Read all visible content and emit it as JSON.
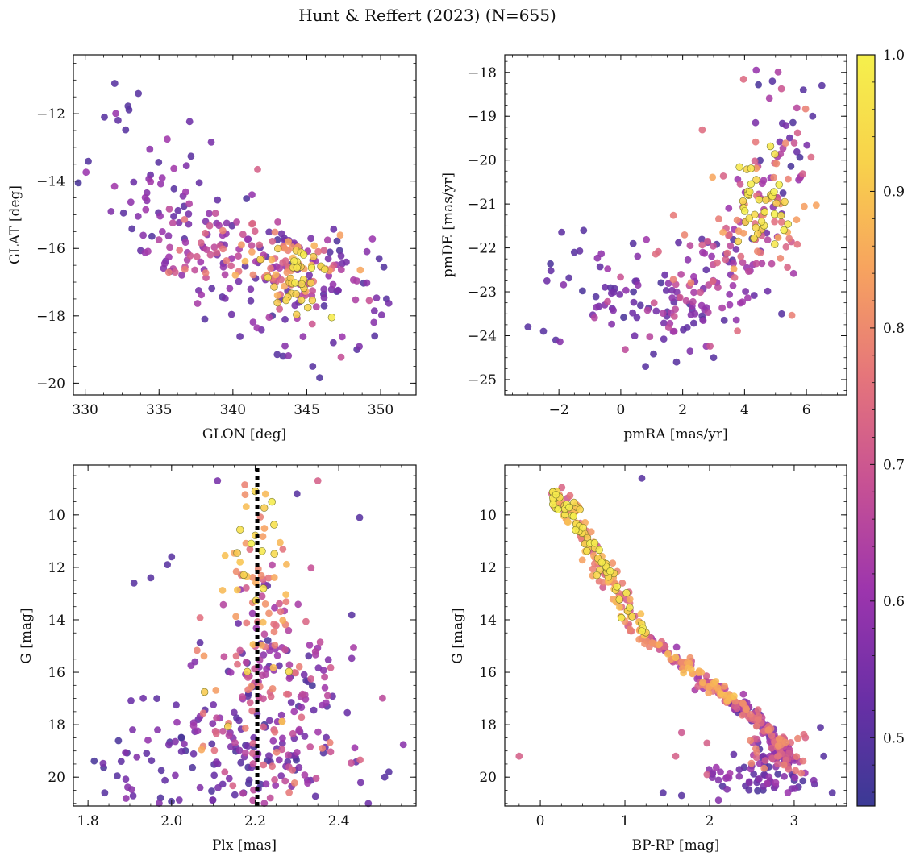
{
  "title": "Hunt & Reffert (2023) (N=655)",
  "colormap": {
    "name": "plasma",
    "vmin": 0.45,
    "vmax": 1.0,
    "ticks": [
      0.5,
      0.6,
      0.7,
      0.8,
      0.9,
      1.0
    ],
    "tick_labels": [
      "0.5",
      "0.6",
      "0.7",
      "0.8",
      "0.9",
      "1.0"
    ],
    "stops": [
      "#3b3a95",
      "#6a2fa6",
      "#9c35ad",
      "#c75194",
      "#e5757b",
      "#f7a35f",
      "#f8d24b",
      "#f5f04c"
    ]
  },
  "colors": {
    "axis": "#111111",
    "guide_line": "#000000",
    "marker_edge_bright": "#7a7a2a"
  },
  "chart_data": [
    {
      "type": "scatter",
      "panel": "top-left",
      "xlabel": "GLON [deg]",
      "ylabel": "GLAT [deg]",
      "xlim": [
        329.2,
        352.4
      ],
      "ylim": [
        -20.35,
        -10.25
      ],
      "y_inverted": false,
      "xticks": [
        330,
        335,
        340,
        345,
        350
      ],
      "xtick_labels": [
        "330",
        "335",
        "340",
        "345",
        "350"
      ],
      "yticks": [
        -20,
        -18,
        -16,
        -14,
        -12
      ],
      "ytick_labels": [
        "−20",
        "−18",
        "−16",
        "−14",
        "−12"
      ],
      "groups": [
        {
          "center": [
            335.0,
            -14.3
          ],
          "spread": [
            2.6,
            1.4
          ],
          "count": 55,
          "color_range": [
            0.47,
            0.62
          ]
        },
        {
          "center": [
            338.5,
            -15.9
          ],
          "spread": [
            2.3,
            0.8
          ],
          "count": 60,
          "color_range": [
            0.55,
            0.8
          ]
        },
        {
          "center": [
            342.5,
            -16.7
          ],
          "spread": [
            3.2,
            0.8
          ],
          "count": 80,
          "color_range": [
            0.47,
            0.65
          ]
        },
        {
          "center": [
            343.5,
            -16.5
          ],
          "spread": [
            1.8,
            0.5
          ],
          "count": 55,
          "color_range": [
            0.7,
            0.88
          ]
        },
        {
          "center": [
            344.3,
            -16.9
          ],
          "spread": [
            0.9,
            0.45
          ],
          "count": 35,
          "color_range": [
            0.9,
            1.0
          ]
        },
        {
          "center": [
            345.5,
            -17.6
          ],
          "spread": [
            2.6,
            0.9
          ],
          "count": 45,
          "color_range": [
            0.47,
            0.7
          ]
        }
      ],
      "points": [
        {
          "x": 332.0,
          "y": -11.1,
          "c": 0.5
        },
        {
          "x": 333.6,
          "y": -11.4,
          "c": 0.5
        },
        {
          "x": 331.3,
          "y": -12.1,
          "c": 0.5
        },
        {
          "x": 343.0,
          "y": -19.15,
          "c": 0.5
        },
        {
          "x": 343.4,
          "y": -19.2,
          "c": 0.5
        },
        {
          "x": 345.4,
          "y": -19.5,
          "c": 0.5
        },
        {
          "x": 348.4,
          "y": -19.0,
          "c": 0.5
        },
        {
          "x": 350.4,
          "y": -17.5,
          "c": 0.5
        },
        {
          "x": 349.6,
          "y": -18.6,
          "c": 0.5
        },
        {
          "x": 349.9,
          "y": -16.3,
          "c": 0.5
        },
        {
          "x": 346.8,
          "y": -18.8,
          "c": 0.52
        },
        {
          "x": 338.1,
          "y": -18.1,
          "c": 0.5
        }
      ]
    },
    {
      "type": "scatter",
      "panel": "top-right",
      "xlabel": "pmRA [mas/yr]",
      "ylabel": "pmDE [mas/yr]",
      "xlim": [
        -3.75,
        7.3
      ],
      "ylim": [
        -25.35,
        -17.6
      ],
      "y_inverted": false,
      "xticks": [
        -2,
        0,
        2,
        4,
        6
      ],
      "xtick_labels": [
        "−2",
        "0",
        "2",
        "4",
        "6"
      ],
      "yticks": [
        -25,
        -24,
        -23,
        -22,
        -21,
        -20,
        -19,
        -18
      ],
      "ytick_labels": [
        "−25",
        "−24",
        "−23",
        "−22",
        "−21",
        "−20",
        "−19",
        "−18"
      ],
      "groups": [
        {
          "center": [
            -0.5,
            -23.1
          ],
          "spread": [
            1.1,
            0.55
          ],
          "count": 40,
          "color_range": [
            0.47,
            0.6
          ]
        },
        {
          "center": [
            1.5,
            -23.4
          ],
          "spread": [
            0.9,
            0.45
          ],
          "count": 55,
          "color_range": [
            0.47,
            0.7
          ]
        },
        {
          "center": [
            3.2,
            -22.4
          ],
          "spread": [
            1.0,
            0.6
          ],
          "count": 65,
          "color_range": [
            0.5,
            0.8
          ]
        },
        {
          "center": [
            4.3,
            -21.4
          ],
          "spread": [
            0.8,
            0.7
          ],
          "count": 60,
          "color_range": [
            0.6,
            0.88
          ]
        },
        {
          "center": [
            4.6,
            -20.9
          ],
          "spread": [
            0.45,
            0.5
          ],
          "count": 38,
          "color_range": [
            0.9,
            1.0
          ]
        },
        {
          "center": [
            5.2,
            -19.6
          ],
          "spread": [
            0.8,
            0.9
          ],
          "count": 45,
          "color_range": [
            0.47,
            0.8
          ]
        }
      ],
      "points": [
        {
          "x": -3.0,
          "y": -23.8,
          "c": 0.5
        },
        {
          "x": -2.5,
          "y": -23.9,
          "c": 0.5
        },
        {
          "x": -2.1,
          "y": -24.1,
          "c": 0.5
        },
        {
          "x": -1.5,
          "y": -22.1,
          "c": 0.5
        },
        {
          "x": -1.2,
          "y": -21.6,
          "c": 0.5
        },
        {
          "x": 0.8,
          "y": -24.7,
          "c": 0.5
        },
        {
          "x": 1.8,
          "y": -24.6,
          "c": 0.5
        },
        {
          "x": 3.0,
          "y": -24.5,
          "c": 0.5
        },
        {
          "x": 4.9,
          "y": -18.2,
          "c": 0.5
        },
        {
          "x": 6.5,
          "y": -18.3,
          "c": 0.5
        },
        {
          "x": 5.9,
          "y": -18.4,
          "c": 0.5
        },
        {
          "x": 6.2,
          "y": -19.0,
          "c": 0.5
        },
        {
          "x": 5.2,
          "y": -23.5,
          "c": 0.5
        },
        {
          "x": 0.4,
          "y": -21.9,
          "c": 0.5
        }
      ]
    },
    {
      "type": "scatter",
      "panel": "bottom-left",
      "xlabel": "Plx [mas]",
      "ylabel": "G [mag]",
      "xlim": [
        1.765,
        2.585
      ],
      "ylim": [
        21.1,
        8.1
      ],
      "y_inverted": true,
      "vline": {
        "x": 2.205,
        "style": "dotted",
        "label": ""
      },
      "xticks": [
        1.8,
        2.0,
        2.2,
        2.4
      ],
      "xtick_labels": [
        "1.8",
        "2.0",
        "2.2",
        "2.4"
      ],
      "yticks": [
        10,
        12,
        14,
        16,
        18,
        20
      ],
      "ytick_labels": [
        "10",
        "12",
        "14",
        "16",
        "18",
        "20"
      ],
      "groups": [
        {
          "center": [
            2.22,
            11.5
          ],
          "spread": [
            0.04,
            1.4
          ],
          "count": 35,
          "color_range": [
            0.75,
            1.0
          ]
        },
        {
          "center": [
            2.22,
            14.8
          ],
          "spread": [
            0.06,
            1.6
          ],
          "count": 85,
          "color_range": [
            0.5,
            0.95
          ]
        },
        {
          "center": [
            2.22,
            18.3
          ],
          "spread": [
            0.08,
            1.5
          ],
          "count": 110,
          "color_range": [
            0.47,
            0.8
          ]
        },
        {
          "center": [
            2.1,
            19.1
          ],
          "spread": [
            0.15,
            1.2
          ],
          "count": 100,
          "color_range": [
            0.47,
            0.6
          ]
        },
        {
          "center": [
            2.33,
            17.5
          ],
          "spread": [
            0.1,
            2.2
          ],
          "count": 45,
          "color_range": [
            0.47,
            0.7
          ]
        }
      ],
      "points": [
        {
          "x": 1.84,
          "y": 20.6,
          "c": 0.5
        },
        {
          "x": 1.87,
          "y": 19.95,
          "c": 0.5
        },
        {
          "x": 1.91,
          "y": 12.6,
          "c": 0.5
        },
        {
          "x": 1.99,
          "y": 11.9,
          "c": 0.5
        },
        {
          "x": 2.0,
          "y": 11.6,
          "c": 0.5
        },
        {
          "x": 1.95,
          "y": 12.4,
          "c": 0.5
        },
        {
          "x": 2.52,
          "y": 19.8,
          "c": 0.5
        },
        {
          "x": 2.51,
          "y": 20.0,
          "c": 0.5
        },
        {
          "x": 2.45,
          "y": 10.1,
          "c": 0.5
        },
        {
          "x": 2.35,
          "y": 8.7,
          "c": 0.72
        },
        {
          "x": 2.11,
          "y": 8.7,
          "c": 0.55
        },
        {
          "x": 2.3,
          "y": 9.2,
          "c": 0.5
        },
        {
          "x": 2.24,
          "y": 9.5,
          "c": 0.99
        },
        {
          "x": 2.2,
          "y": 9.1,
          "c": 0.93
        }
      ]
    },
    {
      "type": "scatter",
      "panel": "bottom-right",
      "xlabel": "BP-RP [mag]",
      "ylabel": "G [mag]",
      "xlim": [
        -0.42,
        3.62
      ],
      "ylim": [
        21.1,
        8.1
      ],
      "y_inverted": true,
      "xticks": [
        0,
        1,
        2,
        3
      ],
      "xtick_labels": [
        "0",
        "1",
        "2",
        "3"
      ],
      "yticks": [
        10,
        12,
        14,
        16,
        18,
        20
      ],
      "ytick_labels": [
        "10",
        "12",
        "14",
        "16",
        "18",
        "20"
      ],
      "sequence": {
        "path": [
          [
            0.18,
            9.1
          ],
          [
            0.35,
            10.0
          ],
          [
            0.6,
            11.2
          ],
          [
            0.8,
            12.4
          ],
          [
            1.0,
            13.5
          ],
          [
            1.25,
            14.6
          ],
          [
            1.6,
            15.5
          ],
          [
            2.0,
            16.5
          ],
          [
            2.4,
            17.3
          ],
          [
            2.7,
            18.2
          ],
          [
            2.85,
            19.0
          ],
          [
            2.9,
            19.6
          ]
        ],
        "count": 430,
        "spread": 0.07
      },
      "groups": [
        {
          "center": [
            2.6,
            20.1
          ],
          "spread": [
            0.3,
            0.35
          ],
          "count": 60,
          "color_range": [
            0.47,
            0.62
          ]
        },
        {
          "center": [
            2.75,
            18.8
          ],
          "spread": [
            0.2,
            0.7
          ],
          "count": 45,
          "color_range": [
            0.47,
            0.8
          ]
        }
      ],
      "points": [
        {
          "x": -0.25,
          "y": 19.2,
          "c": 0.72
        },
        {
          "x": 1.2,
          "y": 8.6,
          "c": 0.5
        },
        {
          "x": 1.67,
          "y": 18.3,
          "c": 0.7
        },
        {
          "x": 1.97,
          "y": 18.7,
          "c": 0.72
        },
        {
          "x": 1.6,
          "y": 19.2,
          "c": 0.72
        },
        {
          "x": 3.45,
          "y": 20.6,
          "c": 0.5
        },
        {
          "x": 3.35,
          "y": 19.2,
          "c": 0.5
        },
        {
          "x": 1.67,
          "y": 20.7,
          "c": 0.5
        },
        {
          "x": 1.97,
          "y": 19.9,
          "c": 0.72
        },
        {
          "x": 1.45,
          "y": 20.6,
          "c": 0.5
        }
      ]
    }
  ]
}
